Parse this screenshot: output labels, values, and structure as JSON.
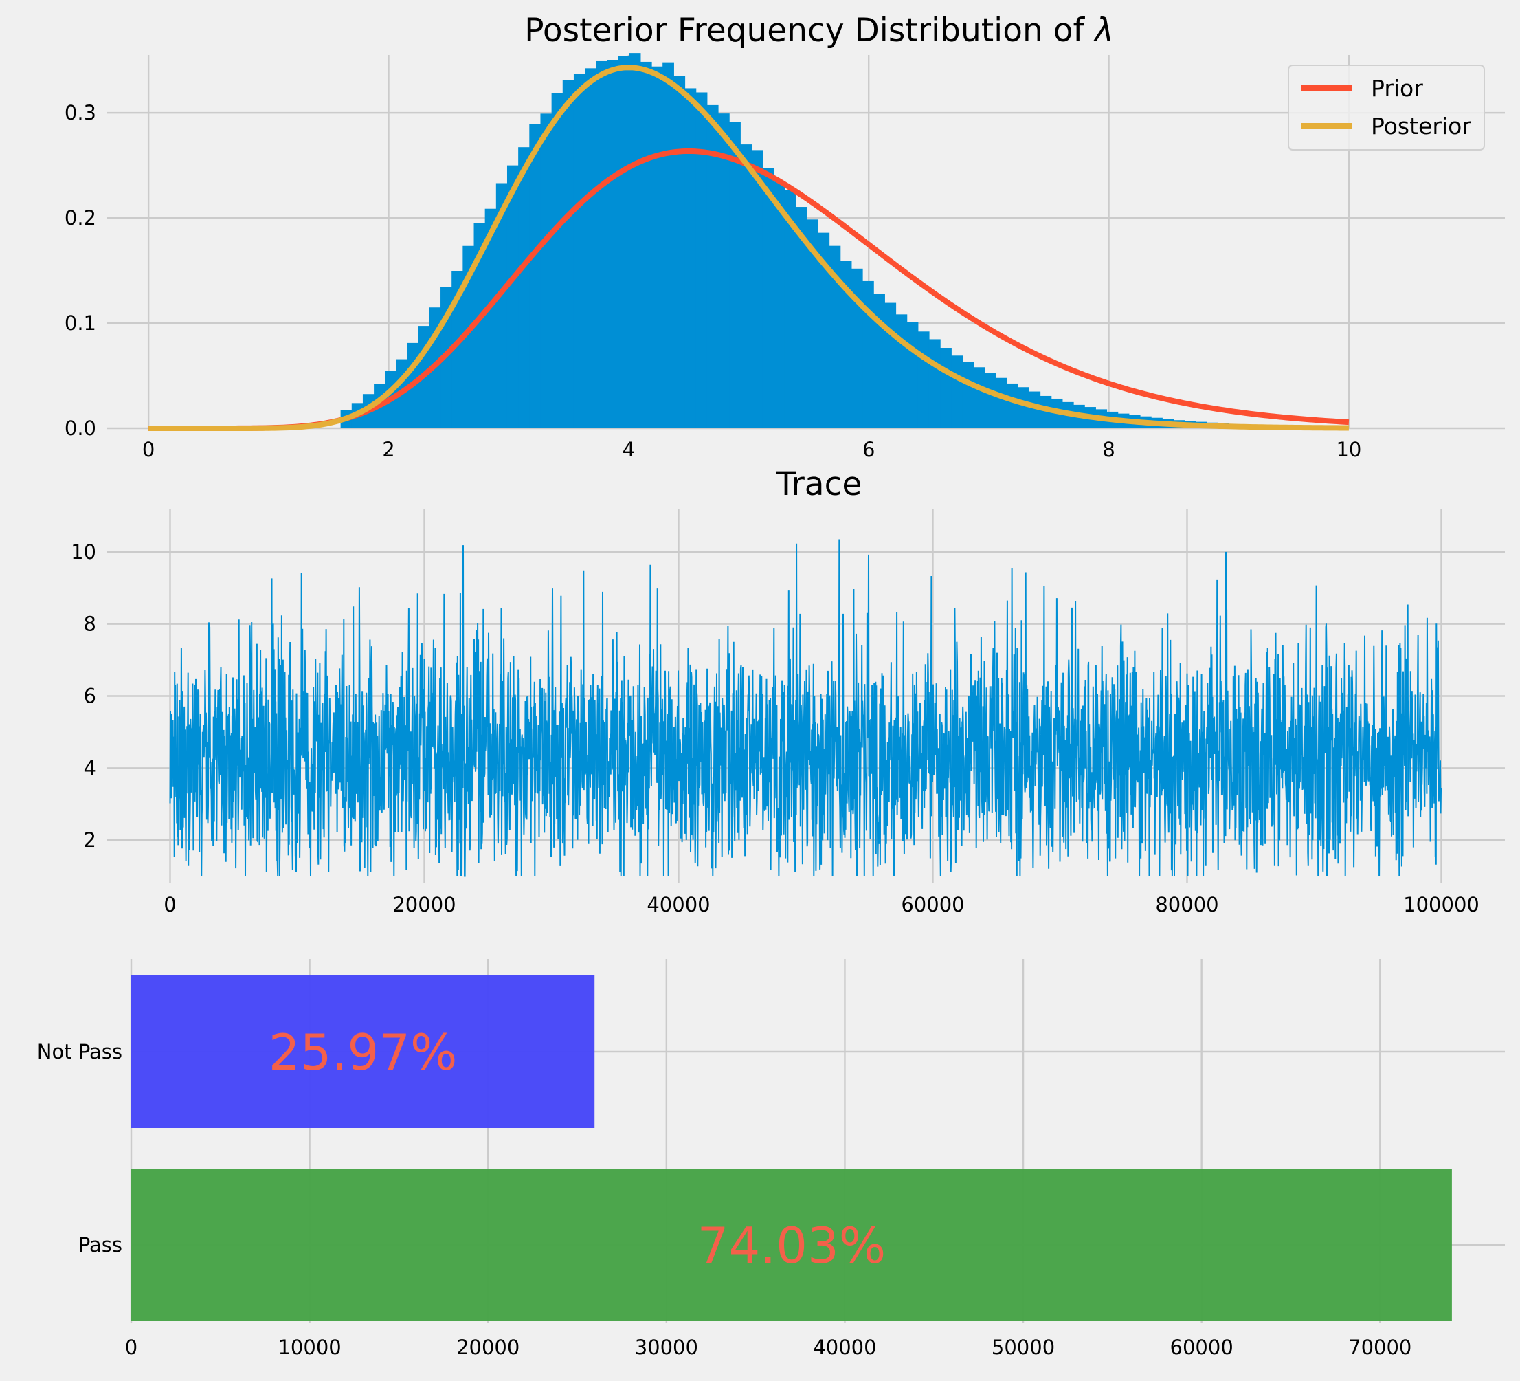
{
  "colors": {
    "background": "#f0f0f0",
    "grid": "#cbcbcb",
    "hist": "#008fd5",
    "prior": "#fc4f30",
    "posterior": "#e5ae38",
    "trace": "#008fd5",
    "not_pass": "#4646f8",
    "pass": "#46a346",
    "bar_label": "#f4604a"
  },
  "chart_data": [
    {
      "type": "histogram",
      "title_prefix": "Posterior Frequency Distribution of ",
      "title_symbol": "λ",
      "xlabel": "",
      "ylabel": "",
      "xlim": [
        -0.35,
        11.3
      ],
      "ylim": [
        0,
        0.355
      ],
      "xticks": [
        0,
        2,
        4,
        6,
        8,
        10
      ],
      "yticks": [
        0.0,
        0.1,
        0.2,
        0.3
      ],
      "ytick_labels": [
        "0.0",
        "0.1",
        "0.2",
        "0.3"
      ],
      "grid": true,
      "legend_position": "top-right",
      "hist_range": [
        1.6,
        9.0
      ],
      "hist_gamma_shape": 11,
      "hist_gamma_rate": 2.5,
      "hist_peak": 0.355,
      "hist_bins": 80,
      "series": [
        {
          "name": "Prior",
          "kind": "gamma_pdf",
          "shape": 10,
          "rate": 2,
          "x_range": [
            0,
            10
          ]
        },
        {
          "name": "Posterior",
          "kind": "gamma_pdf",
          "shape": 13,
          "rate": 3,
          "x_range": [
            0,
            10
          ]
        }
      ]
    },
    {
      "type": "line",
      "title": "Trace",
      "xlabel": "",
      "ylabel": "",
      "xlim": [
        -5000,
        105000
      ],
      "ylim": [
        0.8,
        11.2
      ],
      "xticks": [
        0,
        20000,
        40000,
        60000,
        80000,
        100000
      ],
      "yticks": [
        2,
        4,
        6,
        8,
        10
      ],
      "grid": true,
      "series": [
        {
          "name": "",
          "n_samples": 100000,
          "mean": 4.3,
          "typical_min": 2.0,
          "typical_max": 7.5,
          "extreme_min": 1.0,
          "extreme_max": 10.8
        }
      ]
    },
    {
      "type": "bar",
      "orientation": "horizontal",
      "title": "",
      "xlabel": "",
      "ylabel": "",
      "categories": [
        "Pass",
        "Not Pass"
      ],
      "values": [
        74030,
        25970
      ],
      "labels": [
        "74.03%",
        "25.97%"
      ],
      "xlim": [
        0,
        77000
      ],
      "xticks": [
        0,
        10000,
        20000,
        30000,
        40000,
        50000,
        60000,
        70000
      ],
      "grid": true
    }
  ]
}
